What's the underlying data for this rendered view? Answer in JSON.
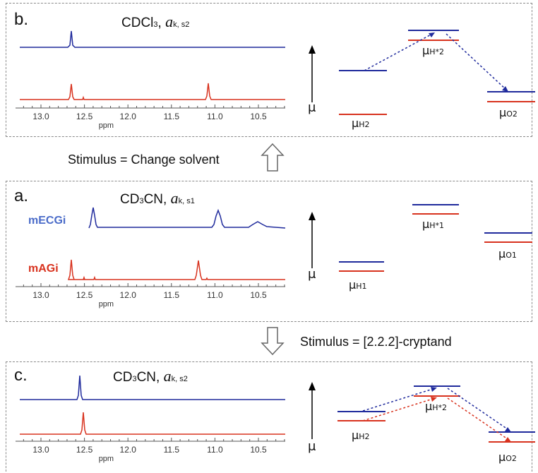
{
  "panels": {
    "b": {
      "letter": "b.",
      "solvent": "CDCl",
      "solvent_sub": "3",
      "activity_symbol": "a",
      "activity_sub": "k, s2",
      "levels": {
        "h_label": "μ",
        "h_sub": "H2",
        "hstar_label": "μ",
        "hstar_sub": "H*2",
        "o_label": "μ",
        "o_sub": "O2"
      }
    },
    "a": {
      "letter": "a.",
      "solvent": "CD",
      "solvent_mid": "3",
      "solvent_tail": "CN, ",
      "activity_symbol": "a",
      "activity_sub": "k, s1",
      "compound_blue": "mECGi",
      "compound_red": "mAGi",
      "levels": {
        "h_label": "μ",
        "h_sub": "H1",
        "hstar_label": "μ",
        "hstar_sub": "H*1",
        "o_label": "μ",
        "o_sub": "O1"
      }
    },
    "c": {
      "letter": "c.",
      "solvent": "CD",
      "solvent_mid": "3",
      "solvent_tail": "CN, ",
      "activity_symbol": "a",
      "activity_sub": "k, s2",
      "levels": {
        "h_label": "μ",
        "h_sub": "H2",
        "hstar_label": "μ",
        "hstar_sub": "H*2",
        "o_label": "μ",
        "o_sub": "O2"
      }
    }
  },
  "axis": {
    "ticks": [
      "13.0",
      "12.5",
      "12.0",
      "11.5",
      "11.0",
      "10.5"
    ],
    "unit": "ppm"
  },
  "mu_axis_label": "μ",
  "stimuli": {
    "top": "Stimulus = Change solvent",
    "bottom": "Stimulus = [2.2.2]-cryptand"
  },
  "colors": {
    "blue": "#1f2a9c",
    "red": "#d8321e",
    "compound_blue": "#4b6cc9",
    "compound_red": "#d8321e",
    "frame": "#8a8a8a"
  }
}
